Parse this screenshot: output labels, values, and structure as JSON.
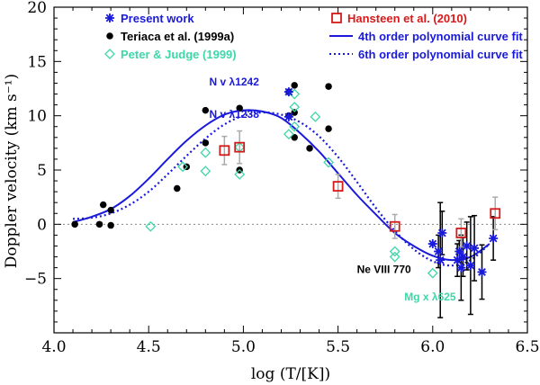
{
  "chart_data": {
    "type": "scatter",
    "xlabel": "log (T/[K])",
    "ylabel": "Doppler velocity (km s⁻¹)",
    "xlim": [
      4.0,
      6.5
    ],
    "ylim": [
      -10,
      20
    ],
    "x_ticks": [
      "4.0",
      "4.5",
      "5.0",
      "5.5",
      "6.0",
      "6.5"
    ],
    "y_ticks": [
      "−5",
      "0",
      "5",
      "10",
      "15",
      "20"
    ],
    "x_tick_values": [
      4.0,
      4.5,
      5.0,
      5.5,
      6.0,
      6.5
    ],
    "y_tick_values": [
      -5,
      0,
      5,
      10,
      15,
      20
    ],
    "zero_line": true,
    "grid": false,
    "legend_position": "top",
    "series": [
      {
        "name": "Present work",
        "marker": "asterisk",
        "color": "#1a1adb",
        "points": [
          {
            "x": 5.24,
            "y": 12.2,
            "err": 0
          },
          {
            "x": 5.24,
            "y": 9.9,
            "err": 0
          },
          {
            "x": 6.0,
            "y": -1.8,
            "err": 0
          },
          {
            "x": 6.03,
            "y": -2.5,
            "err": 1.5
          },
          {
            "x": 6.04,
            "y": -3.3,
            "err": 5.3
          },
          {
            "x": 6.05,
            "y": -0.8,
            "err": 2.0
          },
          {
            "x": 6.13,
            "y": -3.3,
            "err": 1.5
          },
          {
            "x": 6.14,
            "y": -2.5,
            "err": 1.0
          },
          {
            "x": 6.15,
            "y": -4.0,
            "err": 3.0
          },
          {
            "x": 6.16,
            "y": -3.0,
            "err": 1.8
          },
          {
            "x": 6.18,
            "y": -2.0,
            "err": 2.2
          },
          {
            "x": 6.2,
            "y": -3.8,
            "err": 4.5
          },
          {
            "x": 6.22,
            "y": -2.2,
            "err": 3.0
          },
          {
            "x": 6.26,
            "y": -4.4,
            "err": 2.5
          },
          {
            "x": 6.32,
            "y": -1.3,
            "err": 2.0
          }
        ]
      },
      {
        "name": "Teriaca et al. (1999a)",
        "marker": "filled-circle",
        "color": "#000000",
        "points": [
          {
            "x": 4.11,
            "y": 0.0
          },
          {
            "x": 4.24,
            "y": 0.0
          },
          {
            "x": 4.26,
            "y": 1.8
          },
          {
            "x": 4.3,
            "y": 1.3
          },
          {
            "x": 4.3,
            "y": -0.1
          },
          {
            "x": 4.65,
            "y": 3.3
          },
          {
            "x": 4.7,
            "y": 5.3
          },
          {
            "x": 4.8,
            "y": 7.5
          },
          {
            "x": 4.8,
            "y": 10.5
          },
          {
            "x": 4.98,
            "y": 5.0
          },
          {
            "x": 4.98,
            "y": 10.7
          },
          {
            "x": 5.24,
            "y": 12.2
          },
          {
            "x": 5.24,
            "y": 10.0
          },
          {
            "x": 5.27,
            "y": 12.8
          },
          {
            "x": 5.27,
            "y": 10.3
          },
          {
            "x": 5.27,
            "y": 8.0
          },
          {
            "x": 5.35,
            "y": 7.0
          },
          {
            "x": 5.45,
            "y": 8.8
          },
          {
            "x": 5.45,
            "y": 12.7
          }
        ]
      },
      {
        "name": "Peter & Judge (1999)",
        "marker": "open-diamond",
        "color": "#3fd6a8",
        "points": [
          {
            "x": 4.51,
            "y": -0.2
          },
          {
            "x": 4.68,
            "y": 5.3
          },
          {
            "x": 4.8,
            "y": 6.6
          },
          {
            "x": 4.8,
            "y": 4.9
          },
          {
            "x": 4.98,
            "y": 4.6
          },
          {
            "x": 4.98,
            "y": 7.1
          },
          {
            "x": 5.24,
            "y": 8.3
          },
          {
            "x": 5.27,
            "y": 12.0
          },
          {
            "x": 5.27,
            "y": 10.8
          },
          {
            "x": 5.27,
            "y": 9.0
          },
          {
            "x": 5.38,
            "y": 9.9
          },
          {
            "x": 5.45,
            "y": 5.7
          },
          {
            "x": 5.8,
            "y": -2.5
          },
          {
            "x": 5.8,
            "y": -3.0
          },
          {
            "x": 6.0,
            "y": -4.5
          }
        ]
      },
      {
        "name": "Hansteen et al. (2010)",
        "marker": "open-square",
        "color": "#d61a1a",
        "points": [
          {
            "x": 4.9,
            "y": 6.8,
            "err": 1.3
          },
          {
            "x": 4.98,
            "y": 7.1,
            "err": 1.5
          },
          {
            "x": 5.5,
            "y": 3.5,
            "err": 1.1
          },
          {
            "x": 5.8,
            "y": -0.2,
            "err": 1.1
          },
          {
            "x": 6.15,
            "y": -0.8,
            "err": 1.3
          },
          {
            "x": 6.33,
            "y": 1.0,
            "err": 1.5
          }
        ]
      }
    ],
    "curves": [
      {
        "name": "4th order polynomial curve fit",
        "style": "solid",
        "color": "#1a1adb",
        "x": [
          4.1,
          4.2,
          4.3,
          4.4,
          4.5,
          4.6,
          4.7,
          4.8,
          4.9,
          5.0,
          5.1,
          5.2,
          5.3,
          5.4,
          5.5,
          5.6,
          5.7,
          5.8,
          5.9,
          6.0,
          6.1,
          6.2,
          6.3
        ],
        "y": [
          0.2,
          0.7,
          1.4,
          2.6,
          4.2,
          6.0,
          7.7,
          9.1,
          10.1,
          10.5,
          10.4,
          9.8,
          8.4,
          6.7,
          4.7,
          2.7,
          0.9,
          -0.8,
          -2.0,
          -2.9,
          -3.3,
          -3.0,
          -1.8
        ]
      },
      {
        "name": "6th order polynomial curve fit",
        "style": "dotted",
        "color": "#1a1adb",
        "x": [
          4.1,
          4.2,
          4.3,
          4.4,
          4.5,
          4.6,
          4.7,
          4.8,
          4.9,
          5.0,
          5.1,
          5.2,
          5.3,
          5.4,
          5.5,
          5.6,
          5.7,
          5.8,
          5.9,
          6.0,
          6.1,
          6.2,
          6.3
        ],
        "y": [
          0.5,
          0.6,
          1.0,
          1.8,
          3.0,
          4.6,
          6.3,
          7.9,
          9.2,
          10.0,
          10.3,
          10.1,
          9.4,
          8.1,
          6.2,
          3.9,
          1.5,
          -0.6,
          -2.3,
          -3.4,
          -3.8,
          -3.3,
          -1.8
        ]
      }
    ],
    "annotations": [
      {
        "text": "N v λ1242",
        "x": 4.82,
        "y": 12.8,
        "color": "#1a1adb"
      },
      {
        "text": "N v λ1238",
        "x": 4.82,
        "y": 9.8,
        "color": "#1a1adb"
      },
      {
        "text": "Ne VIII 770",
        "x": 5.6,
        "y": -4.5,
        "color": "#000000"
      },
      {
        "text": "Mg x λ625",
        "x": 5.85,
        "y": -7.0,
        "color": "#3fd6a8"
      }
    ]
  }
}
